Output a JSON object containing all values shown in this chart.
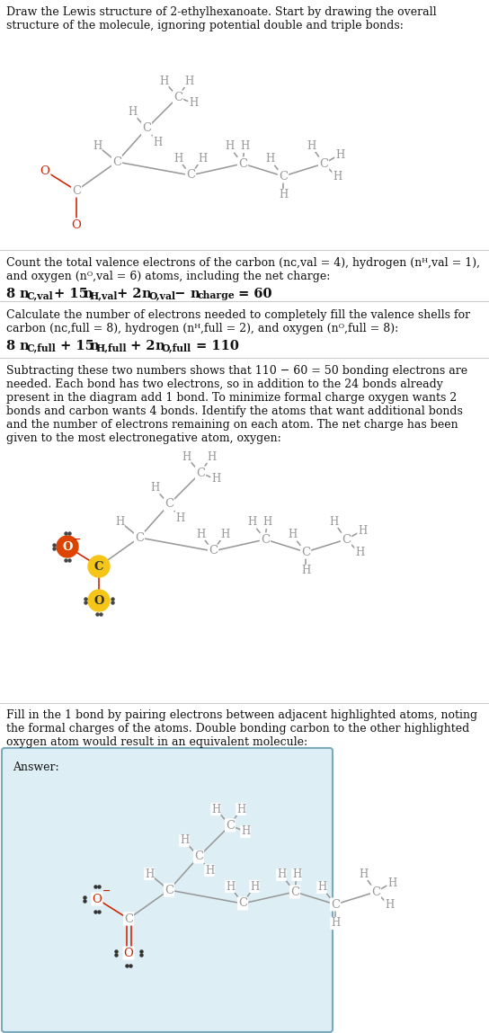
{
  "bg_color": "#ffffff",
  "fc": "#111111",
  "gc": "#999999",
  "rc": "#cc2200",
  "lw": 1.15,
  "fs_body": 9.0,
  "sep_color": "#cccccc",
  "hl_red": "#dd4400",
  "hl_yellow": "#f5c518",
  "answer_bg": "#ddeef5",
  "answer_border": "#7aaabb",
  "dot_color": "#444444"
}
